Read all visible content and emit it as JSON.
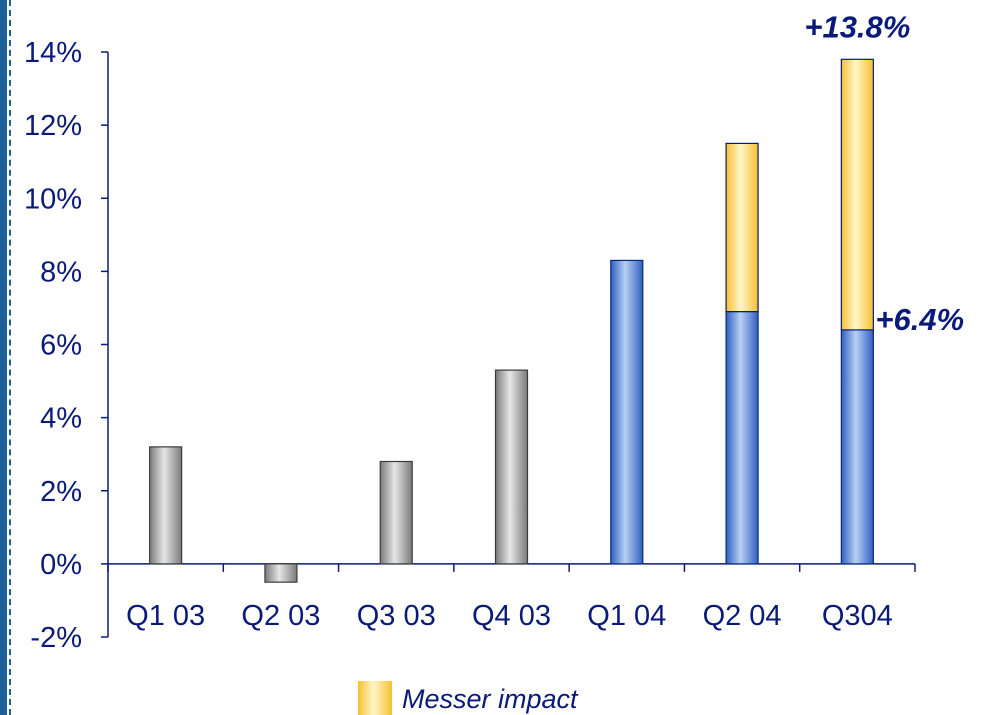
{
  "chart_data": {
    "type": "bar",
    "categories": [
      "Q1 03",
      "Q2 03",
      "Q3 03",
      "Q4 03",
      "Q1 04",
      "Q2 04",
      "Q304"
    ],
    "series": [
      {
        "values": [
          3.2,
          -0.5,
          2.8,
          5.3,
          8.3,
          6.9,
          6.4
        ],
        "colors": [
          "gray",
          "gray",
          "gray",
          "gray",
          "blue",
          "blue",
          "blue"
        ]
      },
      {
        "name": "Messer impact",
        "values": [
          0,
          0,
          0,
          0,
          0,
          4.6,
          7.4
        ],
        "color": "yellow"
      }
    ],
    "stacked": true,
    "ylim": [
      -2,
      14
    ],
    "y_ticks": [
      "-2%",
      "0%",
      "2%",
      "4%",
      "6%",
      "8%",
      "10%",
      "12%",
      "14%"
    ],
    "annotations": [
      "+13.8%",
      "+6.4%"
    ],
    "legend": {
      "placement": "bottom-center",
      "label": "Messer impact"
    },
    "colors": {
      "gray": "#a8a8a8",
      "blue": "#5b8bd8",
      "yellow": "#ffd85a",
      "text": "#0a1a7a"
    }
  }
}
